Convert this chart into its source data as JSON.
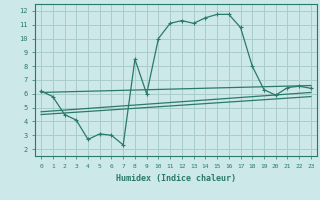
{
  "xlabel": "Humidex (Indice chaleur)",
  "bg_color": "#cce8e8",
  "grid_color": "#aacccc",
  "line_color": "#2a7a6a",
  "xlim": [
    -0.5,
    23.5
  ],
  "ylim": [
    1.5,
    12.5
  ],
  "xticks": [
    0,
    1,
    2,
    3,
    4,
    5,
    6,
    7,
    8,
    9,
    10,
    11,
    12,
    13,
    14,
    15,
    16,
    17,
    18,
    19,
    20,
    21,
    22,
    23
  ],
  "yticks": [
    2,
    3,
    4,
    5,
    6,
    7,
    8,
    9,
    10,
    11,
    12
  ],
  "line1_x": [
    0,
    1,
    2,
    3,
    4,
    5,
    6,
    7,
    8,
    9,
    10,
    11,
    12,
    13,
    14,
    15,
    16,
    17,
    18,
    19,
    20,
    21,
    22,
    23
  ],
  "line1_y": [
    6.2,
    5.8,
    4.5,
    4.1,
    2.7,
    3.1,
    3.0,
    2.3,
    8.5,
    6.0,
    10.0,
    11.1,
    11.3,
    11.1,
    11.5,
    11.75,
    11.75,
    10.8,
    8.0,
    6.3,
    5.9,
    6.45,
    6.55,
    6.4
  ],
  "line2_x": [
    0,
    23
  ],
  "line2_y": [
    6.1,
    6.6
  ],
  "line3_x": [
    0,
    23
  ],
  "line3_y": [
    4.7,
    6.1
  ],
  "line4_x": [
    0,
    23
  ],
  "line4_y": [
    4.5,
    5.8
  ]
}
